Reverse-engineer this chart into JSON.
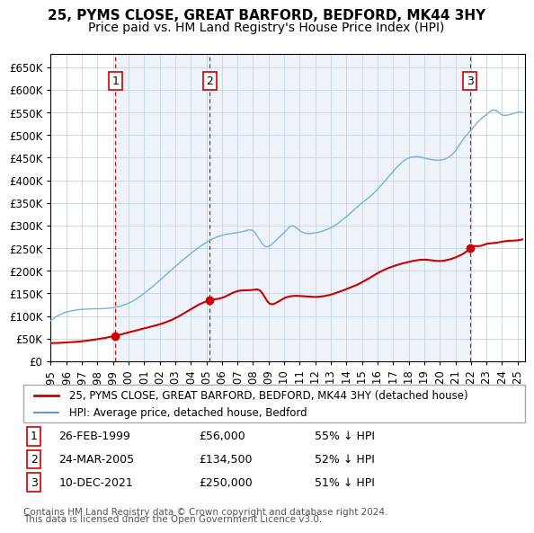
{
  "title1": "25, PYMS CLOSE, GREAT BARFORD, BEDFORD, MK44 3HY",
  "title2": "Price paid vs. HM Land Registry's House Price Index (HPI)",
  "xlabel": "",
  "ylabel": "",
  "ylim": [
    0,
    680000
  ],
  "yticks": [
    0,
    50000,
    100000,
    150000,
    200000,
    250000,
    300000,
    350000,
    400000,
    450000,
    500000,
    550000,
    600000,
    650000
  ],
  "xlim_start": 1995.0,
  "xlim_end": 2025.5,
  "legend_line1": "25, PYMS CLOSE, GREAT BARFORD, BEDFORD, MK44 3HY (detached house)",
  "legend_line2": "HPI: Average price, detached house, Bedford",
  "legend_color1": "#cc0000",
  "legend_color2": "#6699cc",
  "purchase_color": "#cc0000",
  "hpi_color": "#7ab0d4",
  "bg_color": "#dce9f5",
  "annotation_box_color": "#cc0000",
  "grid_color": "#bbccdd",
  "vline_color": "#cc0000",
  "vline_style": "--",
  "transactions": [
    {
      "num": 1,
      "date_x": 1999.15,
      "price": 56000,
      "label": "26-FEB-1999",
      "price_str": "£56,000",
      "hpi_pct": "55% ↓ HPI"
    },
    {
      "num": 2,
      "date_x": 2005.23,
      "price": 134500,
      "label": "24-MAR-2005",
      "price_str": "£134,500",
      "hpi_pct": "52% ↓ HPI"
    },
    {
      "num": 3,
      "date_x": 2021.94,
      "price": 250000,
      "label": "10-DEC-2021",
      "price_str": "£250,000",
      "hpi_pct": "51% ↓ HPI"
    }
  ],
  "footer_line1": "Contains HM Land Registry data © Crown copyright and database right 2024.",
  "footer_line2": "This data is licensed under the Open Government Licence v3.0.",
  "title_fontsize": 11,
  "subtitle_fontsize": 10,
  "tick_fontsize": 8.5
}
